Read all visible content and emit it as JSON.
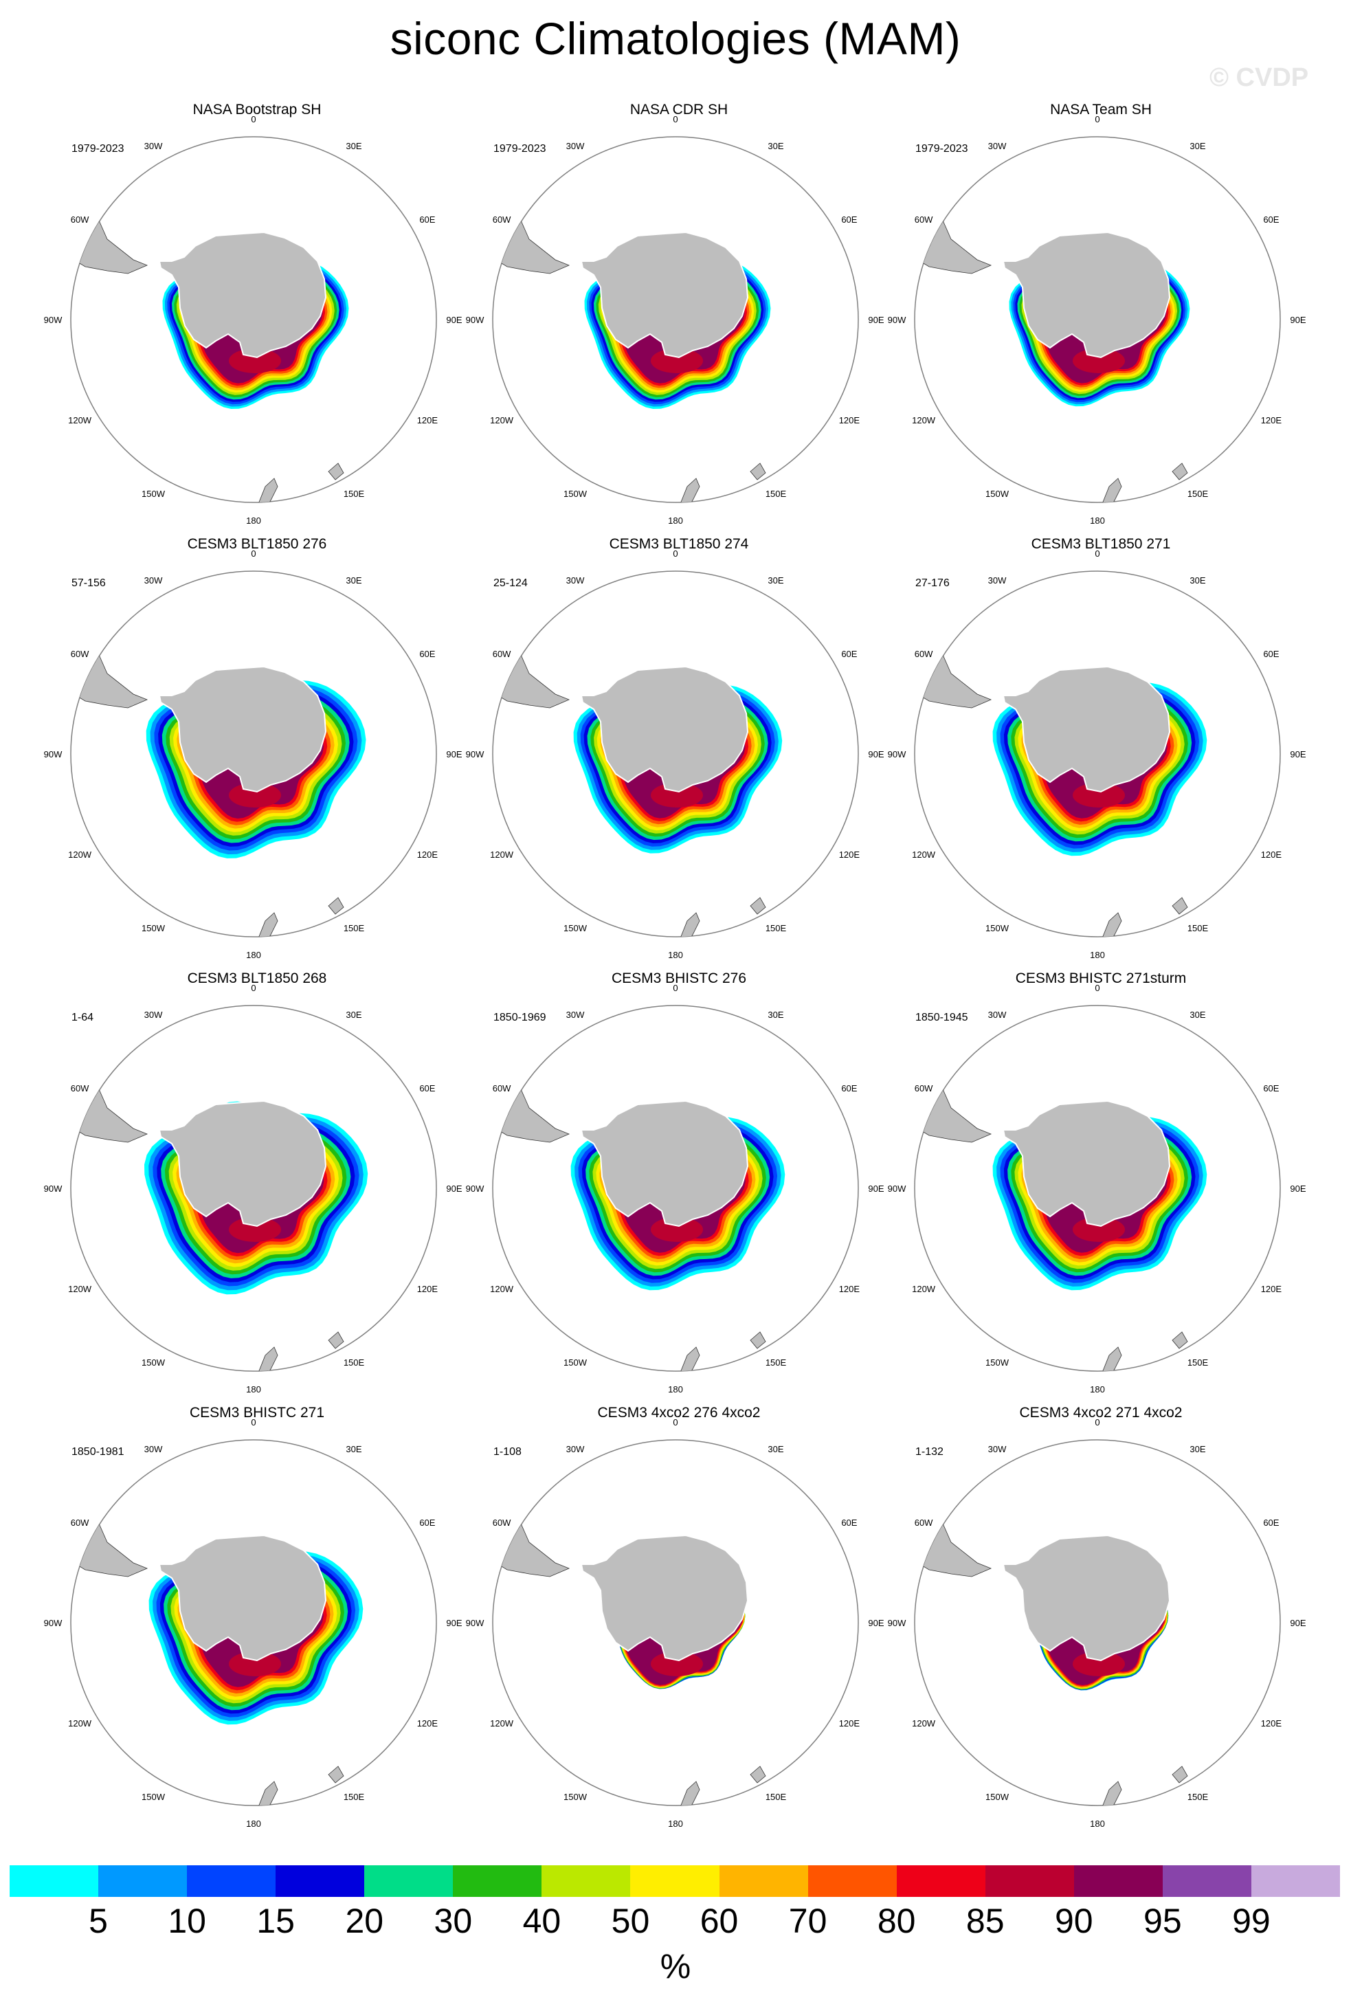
{
  "title": "siconc Climatologies (MAM)",
  "watermark": "© CVDP",
  "longitude_labels": {
    "top": "0",
    "bottom": "180",
    "lon30w": "30W",
    "lon30e": "30E",
    "lon60w": "60W",
    "lon60e": "60E",
    "lon90w": "90W",
    "lon90e": "90E",
    "lon120w": "120W",
    "lon120e": "120E",
    "lon150w": "150W",
    "lon150e": "150E"
  },
  "panels": [
    {
      "title": "NASA Bootstrap SH",
      "years": "1979-2023",
      "extent": 1.0
    },
    {
      "title": "NASA CDR SH",
      "years": "1979-2023",
      "extent": 1.0
    },
    {
      "title": "NASA Team SH",
      "years": "1979-2023",
      "extent": 0.97
    },
    {
      "title": "CESM3 BLT1850 276",
      "years": "57-156",
      "extent": 1.18
    },
    {
      "title": "CESM3 BLT1850 274",
      "years": "25-124",
      "extent": 1.12
    },
    {
      "title": "CESM3 BLT1850 271",
      "years": "27-176",
      "extent": 1.15
    },
    {
      "title": "CESM3 BLT1850 268",
      "years": "1-64",
      "extent": 1.2
    },
    {
      "title": "CESM3 BHISTC 276",
      "years": "1850-1969",
      "extent": 1.15
    },
    {
      "title": "CESM3 BHISTC 271sturm",
      "years": "1850-1945",
      "extent": 1.15
    },
    {
      "title": "CESM3 BHISTC 271",
      "years": "1850-1981",
      "extent": 1.15
    },
    {
      "title": "CESM3 4xco2 276 4xco2",
      "years": "1-108",
      "extent": 0.72
    },
    {
      "title": "CESM3 4xco2 271 4xco2",
      "years": "1-132",
      "extent": 0.74
    }
  ],
  "colorbar": {
    "units": "%",
    "labels": [
      "5",
      "10",
      "15",
      "20",
      "30",
      "40",
      "50",
      "60",
      "70",
      "80",
      "85",
      "90",
      "95",
      "99"
    ],
    "colors": [
      "#00ffff",
      "#0099ff",
      "#0044ff",
      "#0000dd",
      "#00dd88",
      "#22bb11",
      "#bbe800",
      "#ffee00",
      "#ffb400",
      "#ff5500",
      "#ee0018",
      "#bb0030",
      "#880055",
      "#8844aa",
      "#c8aadd"
    ]
  },
  "colors": {
    "land": "#bebebe",
    "circle": "#808080"
  }
}
